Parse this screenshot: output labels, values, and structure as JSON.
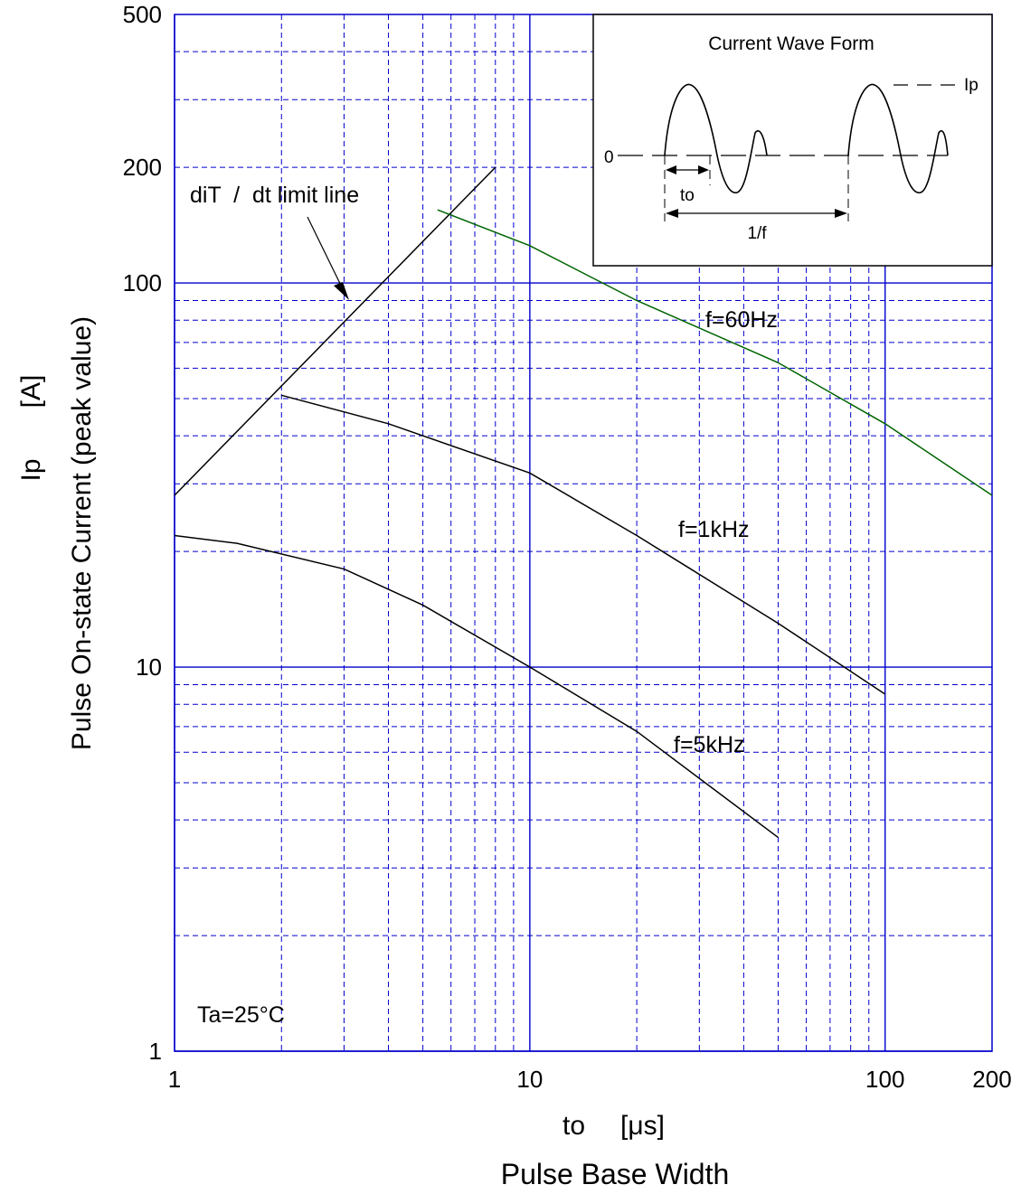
{
  "chart_data": {
    "type": "line",
    "x_scale": "log",
    "y_scale": "log",
    "xlim": [
      1,
      200
    ],
    "ylim": [
      1,
      500
    ],
    "grid": true,
    "xlabel_symbol": "to",
    "xlabel_unit": "[μs]",
    "xlabel_name": "Pulse Base Width",
    "ylabel_symbol": "Ip",
    "ylabel_unit": "[A]",
    "ylabel_name": "Pulse On-state Current (peak value)",
    "x_ticks": [
      "1",
      "10",
      "100",
      "200"
    ],
    "x_tick_values": [
      1,
      10,
      100,
      200
    ],
    "y_ticks": [
      "1",
      "10",
      "100",
      "200",
      "500"
    ],
    "y_tick_values": [
      1,
      10,
      100,
      200,
      500
    ],
    "annotation_condition": "Ta=25°C",
    "limit_line": {
      "label": "diT  /  dt limit line",
      "x": [
        1,
        8
      ],
      "y": [
        28,
        200
      ],
      "color": "#000000"
    },
    "series": [
      {
        "name": "f=60Hz",
        "color": "#006400",
        "x": [
          5.5,
          10,
          20,
          50,
          100,
          200
        ],
        "y": [
          155,
          125,
          90,
          62,
          43,
          28
        ]
      },
      {
        "name": "f=1kHz",
        "color": "#000000",
        "x": [
          2,
          4,
          10,
          20,
          50,
          100
        ],
        "y": [
          51,
          43,
          32,
          22,
          13,
          8.5
        ]
      },
      {
        "name": "f=5kHz",
        "color": "#000000",
        "x": [
          1,
          1.5,
          3,
          5,
          10,
          20,
          50
        ],
        "y": [
          22,
          21,
          18,
          14.5,
          10,
          6.8,
          3.6
        ]
      }
    ],
    "grid_colors": {
      "major": "#0000cc",
      "minor": "#0000cc",
      "limit": "#000000"
    },
    "inset": {
      "title": "Current Wave Form",
      "zero_label": "0",
      "peak_label": "Ip",
      "to_label": "to",
      "period_label": "1/f"
    }
  }
}
